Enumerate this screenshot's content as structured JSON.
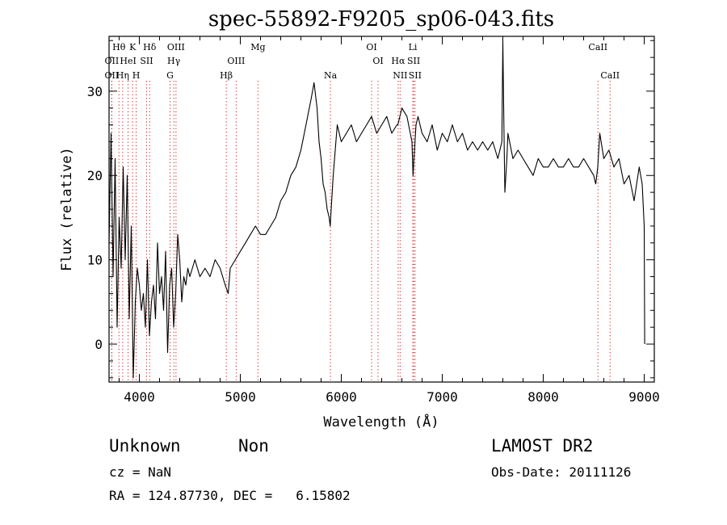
{
  "chart_data": {
    "type": "line",
    "title": "spec-55892-F9205_sp06-043.fits",
    "xlabel": "Wavelength (Å)",
    "ylabel": "Flux (relative)",
    "xlim": [
      3700,
      9100
    ],
    "ylim": [
      -4.5,
      36.5
    ],
    "xticks": [
      4000,
      5000,
      6000,
      7000,
      8000,
      9000
    ],
    "yticks": [
      0,
      10,
      20,
      30
    ],
    "grid": false,
    "series": [
      {
        "x": [
          3700,
          3720,
          3740,
          3760,
          3780,
          3800,
          3820,
          3840,
          3860,
          3880,
          3900,
          3920,
          3940,
          3960,
          3980,
          4000,
          4020,
          4040,
          4060,
          4080,
          4100,
          4120,
          4140,
          4160,
          4180,
          4200,
          4220,
          4240,
          4260,
          4280,
          4300,
          4320,
          4340,
          4360,
          4380,
          4400,
          4420,
          4440,
          4460,
          4480,
          4500,
          4550,
          4600,
          4650,
          4700,
          4750,
          4800,
          4850,
          4880,
          4900,
          4950,
          5000,
          5050,
          5100,
          5150,
          5200,
          5250,
          5300,
          5350,
          5400,
          5450,
          5500,
          5550,
          5600,
          5650,
          5700,
          5730,
          5760,
          5780,
          5800,
          5820,
          5840,
          5860,
          5880,
          5890,
          5900,
          5920,
          5940,
          5960,
          6000,
          6050,
          6100,
          6150,
          6200,
          6250,
          6300,
          6350,
          6400,
          6450,
          6500,
          6550,
          6560,
          6600,
          6650,
          6700,
          6710,
          6720,
          6740,
          6760,
          6800,
          6850,
          6900,
          6950,
          7000,
          7050,
          7100,
          7150,
          7200,
          7250,
          7300,
          7350,
          7400,
          7450,
          7500,
          7550,
          7590,
          7600,
          7610,
          7620,
          7640,
          7650,
          7700,
          7750,
          7800,
          7850,
          7900,
          7950,
          8000,
          8050,
          8100,
          8150,
          8200,
          8250,
          8300,
          8350,
          8400,
          8450,
          8500,
          8520,
          8540,
          8560,
          8600,
          8650,
          8700,
          8750,
          8800,
          8850,
          8900,
          8950,
          8980,
          9000,
          9005
        ],
        "values": [
          12,
          25,
          8,
          22,
          2,
          15,
          9,
          21,
          10,
          20,
          3,
          14,
          -4,
          5,
          9,
          7,
          4,
          6,
          2,
          10,
          1,
          5,
          7,
          3,
          12,
          6,
          8,
          4,
          11,
          -1,
          7,
          9,
          2,
          6,
          13,
          10,
          5,
          8,
          7,
          9,
          8,
          10,
          8,
          9,
          8,
          10,
          9,
          7,
          6,
          9,
          10,
          11,
          12,
          13,
          14,
          13,
          13,
          14,
          15,
          17,
          18,
          20,
          21,
          23,
          26,
          29,
          31,
          28,
          24,
          22,
          19,
          18,
          16,
          15,
          14,
          16,
          20,
          23,
          26,
          24,
          25,
          26,
          24,
          25,
          26,
          27,
          25,
          26,
          27,
          25,
          26,
          26,
          28,
          27,
          24,
          20,
          22,
          26,
          27,
          25,
          24,
          26,
          23,
          25,
          24,
          26,
          24,
          25,
          23,
          24,
          23,
          24,
          23,
          24,
          22,
          24,
          36,
          26,
          18,
          22,
          25,
          22,
          23,
          22,
          21,
          20,
          22,
          21,
          21,
          22,
          21,
          21,
          22,
          21,
          21,
          22,
          21,
          20,
          19,
          21,
          25,
          22,
          23,
          21,
          22,
          19,
          20,
          17,
          21,
          19,
          14,
          0
        ]
      }
    ],
    "lines": [
      {
        "label": "Hθ",
        "x": 3798,
        "row": 0
      },
      {
        "label": "K",
        "x": 3934,
        "row": 0
      },
      {
        "label": "Hδ",
        "x": 4102,
        "row": 0
      },
      {
        "label": "OIII",
        "x": 4363,
        "row": 0
      },
      {
        "label": "Mg",
        "x": 5175,
        "row": 0
      },
      {
        "label": "OI",
        "x": 6300,
        "row": 0
      },
      {
        "label": "Li",
        "x": 6708,
        "row": 0
      },
      {
        "label": "CaII",
        "x": 8542,
        "row": 0
      },
      {
        "label": "OII",
        "x": 3727,
        "row": 1
      },
      {
        "label": "HeI",
        "x": 3889,
        "row": 1
      },
      {
        "label": "SII",
        "x": 4072,
        "row": 1
      },
      {
        "label": "Hγ",
        "x": 4341,
        "row": 1
      },
      {
        "label": "OIII",
        "x": 4959,
        "row": 1
      },
      {
        "label": "OI",
        "x": 6364,
        "row": 1
      },
      {
        "label": "Hα",
        "x": 6563,
        "row": 1
      },
      {
        "label": "SII",
        "x": 6717,
        "row": 1
      },
      {
        "label": "OII",
        "x": 3727,
        "row": 2
      },
      {
        "label": "Hη",
        "x": 3835,
        "row": 2
      },
      {
        "label": "H",
        "x": 3968,
        "row": 2
      },
      {
        "label": "G",
        "x": 4304,
        "row": 2
      },
      {
        "label": "Hβ",
        "x": 4861,
        "row": 2
      },
      {
        "label": "Na",
        "x": 5893,
        "row": 2
      },
      {
        "label": "NII",
        "x": 6583,
        "row": 2
      },
      {
        "label": "SII",
        "x": 6731,
        "row": 2
      },
      {
        "label": "CaII",
        "x": 8662,
        "row": 2
      }
    ],
    "colors": {
      "line": "#000000",
      "marker": "#d01818",
      "axes": "#000000"
    }
  },
  "footer": {
    "class_label": "Unknown",
    "subclass_label": "Non",
    "survey_label": "LAMOST DR2",
    "cz_text": "cz = NaN",
    "obs_date_text": "Obs-Date: 20111126",
    "coords_text": "RA = 124.87730, DEC =   6.15802"
  }
}
